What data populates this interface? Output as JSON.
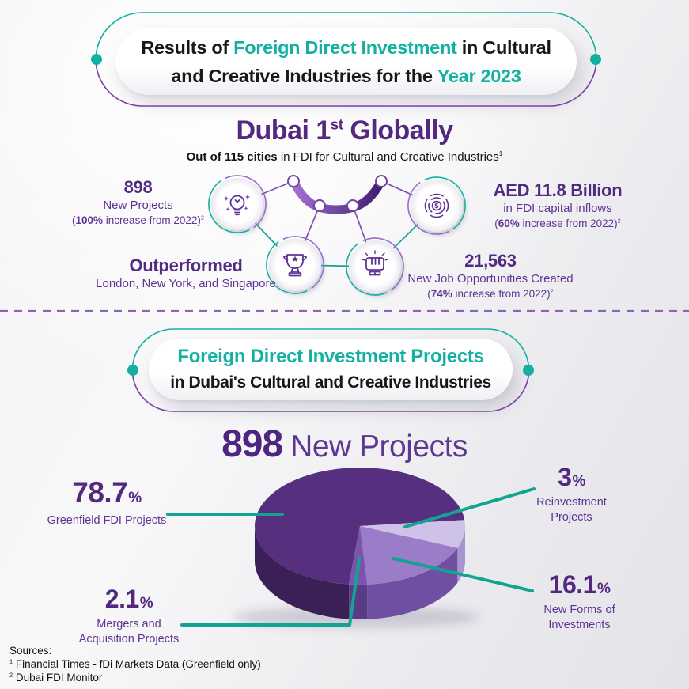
{
  "colors": {
    "teal": "#14b1a2",
    "purple_dark": "#54287f",
    "purple_mid": "#5d3494",
    "callout_line": "#12a392"
  },
  "header_banner": {
    "line1_pre": "Results of ",
    "line1_hl": "Foreign Direct Investment",
    "line1_post": " in Cultural",
    "line2_pre": "and Creative Industries for the ",
    "line2_hl": "Year 2023"
  },
  "rank": {
    "title_pre": "Dubai 1",
    "title_sup": "st",
    "title_post": " Globally",
    "subtitle_bold": "Out of 115 cities",
    "subtitle_rest": " in FDI for Cultural and Creative Industries",
    "subtitle_sup": "1"
  },
  "stats": {
    "projects": {
      "icon": "lightbulb-icon",
      "value": "898",
      "label": "New Projects",
      "note_pre": "(",
      "note_bold": "100%",
      "note_post": " increase from 2022)",
      "note_sup": "2"
    },
    "capital": {
      "icon": "coin-maze-icon",
      "value": "AED 11.8 Billion",
      "label": "in FDI capital inflows",
      "note_pre": "(",
      "note_bold": "60%",
      "note_post": " increase from 2022)",
      "note_sup": "2"
    },
    "outperformed": {
      "icon": "trophy-icon",
      "value": "Outperformed",
      "label": "London, New York, and Singapore"
    },
    "jobs": {
      "icon": "raised-fist-icon",
      "value": "21,563",
      "label": "New Job Opportunities Created",
      "note_pre": "(",
      "note_bold": "74%",
      "note_post": " increase from 2022)",
      "note_sup": "2"
    }
  },
  "section2_banner": {
    "line1": "Foreign Direct Investment Projects",
    "line2": "in Dubai's Cultural and Creative Industries"
  },
  "chart_heading": {
    "value": "898",
    "label": "New Projects"
  },
  "chart_data": {
    "type": "pie",
    "title": "898 New Projects",
    "unit": "%",
    "start_deg": 96,
    "slices": [
      {
        "label": "Greenfield FDI Projects",
        "value": 78.7,
        "color": "#56307e",
        "side_color": "#3b2058",
        "draw_deg": 258
      },
      {
        "label": "Reinvestment Projects",
        "value": 3,
        "color": "#cfc2e9",
        "side_color": "#a795cf",
        "draw_deg": 28
      },
      {
        "label": "New Forms of Investments",
        "value": 16.1,
        "color": "#9b7cc9",
        "side_color": "#6f4fa1",
        "draw_deg": 64
      },
      {
        "label": "Mergers and Acquisition Projects",
        "value": 2.1,
        "color": "#7a55ae",
        "side_color": "#5a3b85",
        "draw_deg": 10
      }
    ],
    "legend_position": "callout-labels",
    "grid": false
  },
  "pie_labels": {
    "greenfield": {
      "line1": "Greenfield FDI Projects"
    },
    "reinvestment": {
      "line1": "Reinvestment",
      "line2": "Projects"
    },
    "newforms": {
      "line1": "New Forms of",
      "line2": "Investments"
    },
    "mergers": {
      "line1": "Mergers and",
      "line2": "Acquisition Projects"
    }
  },
  "sources": {
    "heading": "Sources:",
    "items": [
      {
        "sup": "1",
        "text": " Financial Times - fDi Markets Data (Greenfield only)"
      },
      {
        "sup": "2",
        "text": " Dubai FDI Monitor"
      }
    ]
  }
}
